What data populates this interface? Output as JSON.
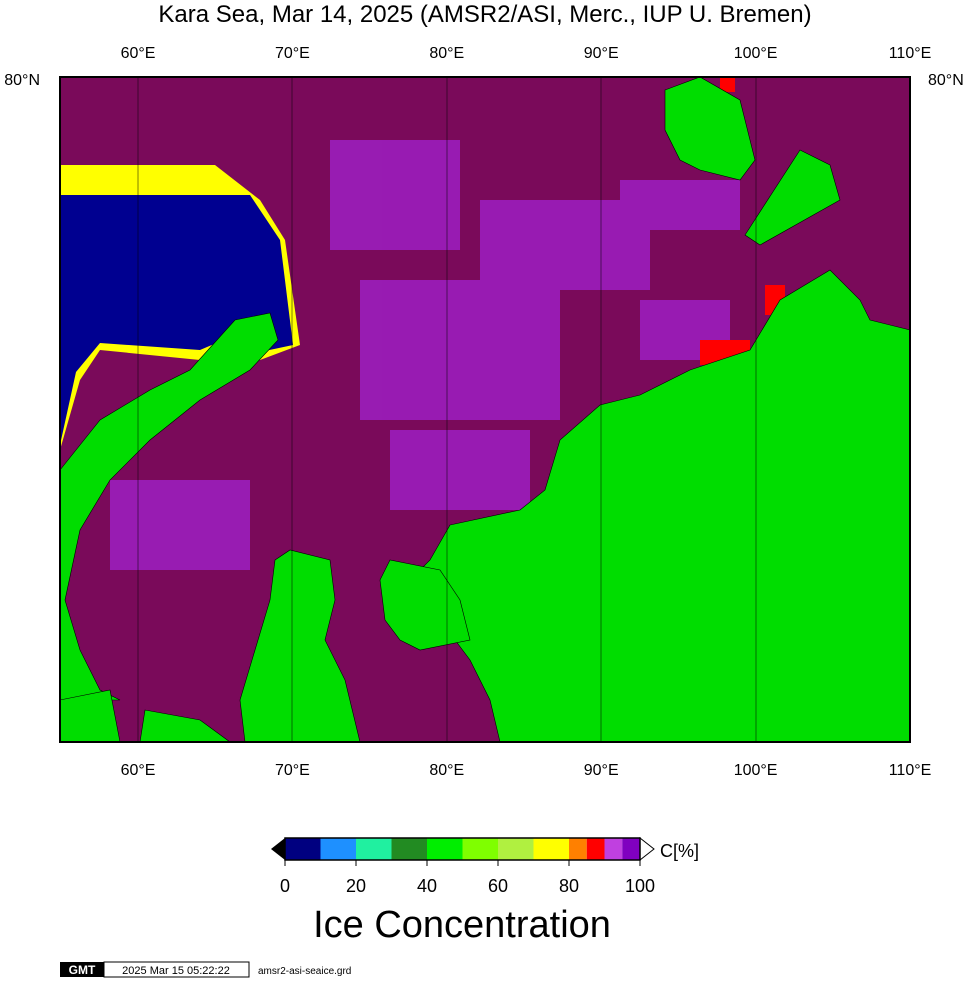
{
  "title": "Kara Sea, Mar 14, 2025 (AMSR2/ASI, Merc., IUP U. Bremen)",
  "map": {
    "top_labels": [
      "60°E",
      "70°E",
      "80°E",
      "90°E",
      "100°E",
      "110°E"
    ],
    "bottom_labels": [
      "60°E",
      "70°E",
      "80°E",
      "90°E",
      "100°E",
      "110°E"
    ],
    "left_label": "80°N",
    "right_label": "80°N"
  },
  "colorbar": {
    "unit": "C[%]",
    "title": "Ice Concentration",
    "ticks": [
      0,
      20,
      40,
      60,
      80,
      100
    ],
    "boundaries": [
      0,
      10,
      20,
      30,
      40,
      50,
      60,
      70,
      80,
      85,
      90,
      95,
      100
    ],
    "colors": [
      "#000080",
      "#1e90ff",
      "#20f0a0",
      "#228b22",
      "#00ee00",
      "#7fff00",
      "#b0f040",
      "#ffff00",
      "#ff8000",
      "#ff0000",
      "#c040e0",
      "#8000c0"
    ]
  },
  "footer": {
    "logo": "GMT",
    "timestamp": "2025 Mar 15 05:22:22",
    "file": "amsr2-asi-seaice.grd"
  }
}
